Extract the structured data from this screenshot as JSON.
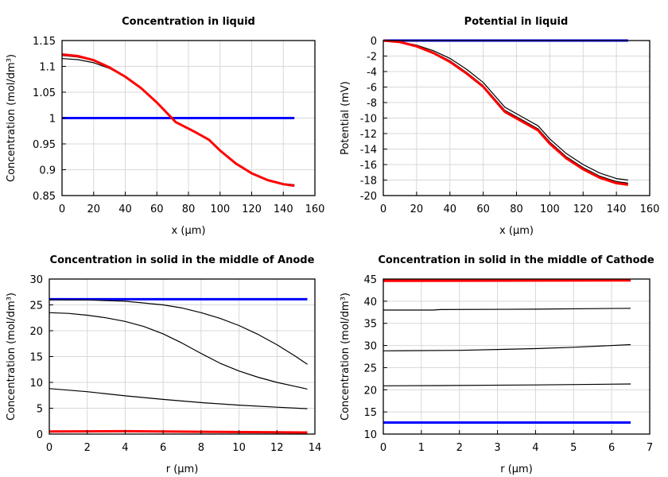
{
  "chart_data": [
    {
      "type": "line",
      "title": "Concentration in liquid",
      "xlabel": "x (µm)",
      "ylabel": "Concentration (mol/dm³)",
      "xlim": [
        0,
        160
      ],
      "ylim": [
        0.85,
        1.15
      ],
      "xticks": [
        0,
        20,
        40,
        60,
        80,
        100,
        120,
        140,
        160
      ],
      "yticks": [
        0.85,
        0.9,
        0.95,
        1,
        1.05,
        1.1,
        1.15
      ],
      "ytick_labels": [
        "0.85",
        "0.9",
        "0.95",
        "1",
        "1.05",
        "1.1",
        "1.15"
      ],
      "grid": true,
      "series": [
        {
          "color": "#0000ff",
          "width": 3,
          "x": [
            0,
            147
          ],
          "y": [
            1,
            1
          ]
        },
        {
          "color": "#000000",
          "width": 1.2,
          "x": [
            0,
            10,
            20,
            30,
            40,
            50,
            60,
            72,
            83,
            93,
            100,
            110,
            120,
            130,
            140,
            147
          ],
          "y": [
            1.115,
            1.113,
            1.107,
            1.096,
            1.08,
            1.058,
            1.03,
            0.993,
            0.976,
            0.959,
            0.938,
            0.913,
            0.894,
            0.881,
            0.873,
            0.871
          ]
        },
        {
          "color": "#000000",
          "width": 1.2,
          "x": [
            0,
            10,
            20,
            30,
            40,
            50,
            60,
            72,
            83,
            93,
            100,
            110,
            120,
            130,
            140,
            147
          ],
          "y": [
            1.121,
            1.118,
            1.111,
            1.098,
            1.08,
            1.058,
            1.03,
            0.992,
            0.975,
            0.958,
            0.937,
            0.912,
            0.893,
            0.88,
            0.872,
            0.87
          ]
        },
        {
          "color": "#ff0000",
          "width": 3,
          "x": [
            0,
            10,
            20,
            30,
            40,
            50,
            60,
            72,
            83,
            93,
            100,
            110,
            120,
            130,
            140,
            147
          ],
          "y": [
            1.123,
            1.12,
            1.112,
            1.098,
            1.08,
            1.058,
            1.03,
            0.992,
            0.975,
            0.958,
            0.937,
            0.912,
            0.893,
            0.88,
            0.872,
            0.869
          ]
        }
      ]
    },
    {
      "type": "line",
      "title": "Potential in liquid",
      "xlabel": "x (µm)",
      "ylabel": "Potential (mV)",
      "xlim": [
        0,
        160
      ],
      "ylim": [
        -20,
        0
      ],
      "xticks": [
        0,
        20,
        40,
        60,
        80,
        100,
        120,
        140,
        160
      ],
      "yticks": [
        -20,
        -18,
        -16,
        -14,
        -12,
        -10,
        -8,
        -6,
        -4,
        -2,
        0
      ],
      "ytick_labels": [
        "-20",
        "-18",
        "-16",
        "-14",
        "-12",
        "-10",
        "-8",
        "-6",
        "-4",
        "-2",
        "0"
      ],
      "grid": true,
      "series": [
        {
          "color": "#0000ff",
          "width": 3,
          "x": [
            0,
            147
          ],
          "y": [
            0,
            0
          ]
        },
        {
          "color": "#000000",
          "width": 1.2,
          "x": [
            0,
            10,
            20,
            30,
            40,
            50,
            60,
            73,
            83,
            93,
            100,
            110,
            120,
            130,
            140,
            147
          ],
          "y": [
            0,
            -0.15,
            -0.6,
            -1.3,
            -2.3,
            -3.7,
            -5.4,
            -8.6,
            -9.8,
            -11.0,
            -12.7,
            -14.6,
            -16.0,
            -17.1,
            -17.8,
            -18.0
          ]
        },
        {
          "color": "#000000",
          "width": 1.2,
          "x": [
            0,
            10,
            20,
            30,
            40,
            50,
            60,
            73,
            83,
            93,
            100,
            110,
            120,
            130,
            140,
            147
          ],
          "y": [
            0,
            -0.2,
            -0.7,
            -1.5,
            -2.6,
            -4.1,
            -5.8,
            -9.0,
            -10.2,
            -11.4,
            -13.1,
            -15.0,
            -16.4,
            -17.5,
            -18.2,
            -18.4
          ]
        },
        {
          "color": "#ff0000",
          "width": 3,
          "x": [
            0,
            10,
            20,
            30,
            40,
            50,
            60,
            73,
            83,
            93,
            100,
            110,
            120,
            130,
            140,
            147
          ],
          "y": [
            0,
            -0.2,
            -0.75,
            -1.6,
            -2.75,
            -4.25,
            -5.95,
            -9.2,
            -10.4,
            -11.6,
            -13.3,
            -15.2,
            -16.6,
            -17.7,
            -18.4,
            -18.6
          ]
        }
      ]
    },
    {
      "type": "line",
      "title": "Concentration in solid in the middle of Anode",
      "xlabel": "r (µm)",
      "ylabel": "Concentration (mol/dm³)",
      "xlim": [
        0,
        14
      ],
      "ylim": [
        0,
        30
      ],
      "xticks": [
        0,
        2,
        4,
        6,
        8,
        10,
        12,
        14
      ],
      "yticks": [
        0,
        5,
        10,
        15,
        20,
        25,
        30
      ],
      "ytick_labels": [
        "0",
        "5",
        "10",
        "15",
        "20",
        "25",
        "30"
      ],
      "grid": true,
      "series": [
        {
          "color": "#0000ff",
          "width": 3,
          "x": [
            0,
            13.6
          ],
          "y": [
            26.1,
            26.1
          ]
        },
        {
          "color": "#000000",
          "width": 1.2,
          "x": [
            0,
            2,
            4,
            6,
            7,
            8,
            9,
            10,
            11,
            12,
            13,
            13.6
          ],
          "y": [
            26,
            25.95,
            25.7,
            25,
            24.4,
            23.5,
            22.4,
            21,
            19.3,
            17.3,
            15,
            13.5
          ]
        },
        {
          "color": "#000000",
          "width": 1.2,
          "x": [
            0,
            1,
            2,
            3,
            4,
            5,
            6,
            7,
            8,
            9,
            10,
            11,
            12,
            13,
            13.6
          ],
          "y": [
            23.5,
            23.35,
            23,
            22.5,
            21.8,
            20.8,
            19.4,
            17.6,
            15.6,
            13.7,
            12.2,
            11,
            10,
            9.2,
            8.7
          ]
        },
        {
          "color": "#000000",
          "width": 1.2,
          "x": [
            0,
            2,
            4,
            6,
            8,
            10,
            12,
            13.6
          ],
          "y": [
            8.8,
            8.2,
            7.4,
            6.7,
            6.1,
            5.6,
            5.2,
            4.9
          ]
        },
        {
          "color": "#ff0000",
          "width": 3,
          "x": [
            0,
            4,
            8,
            12,
            13.6
          ],
          "y": [
            0.5,
            0.55,
            0.45,
            0.35,
            0.3
          ]
        }
      ]
    },
    {
      "type": "line",
      "title": "Concentration in solid in the middle of Cathode",
      "xlabel": "r (µm)",
      "ylabel": "Concentration (mol/dm³)",
      "xlim": [
        0,
        7
      ],
      "ylim": [
        10,
        45
      ],
      "xticks": [
        0,
        1,
        2,
        3,
        4,
        5,
        6,
        7
      ],
      "yticks": [
        10,
        15,
        20,
        25,
        30,
        35,
        40,
        45
      ],
      "ytick_labels": [
        "10",
        "15",
        "20",
        "25",
        "30",
        "35",
        "40",
        "45"
      ],
      "grid": true,
      "series": [
        {
          "color": "#0000ff",
          "width": 3,
          "x": [
            0,
            6.5
          ],
          "y": [
            12.6,
            12.6
          ]
        },
        {
          "color": "#000000",
          "width": 1.2,
          "x": [
            0,
            1.5,
            4,
            6.5
          ],
          "y": [
            20.9,
            20.95,
            21.1,
            21.3
          ]
        },
        {
          "color": "#000000",
          "width": 1.2,
          "x": [
            0,
            2,
            4,
            5,
            6.5
          ],
          "y": [
            28.8,
            28.9,
            29.3,
            29.6,
            30.2
          ]
        },
        {
          "color": "#000000",
          "width": 1.2,
          "x": [
            0,
            1.3,
            1.5,
            4,
            6.5
          ],
          "y": [
            38,
            38,
            38.1,
            38.2,
            38.4
          ]
        },
        {
          "color": "#ff0000",
          "width": 3,
          "x": [
            0,
            6.5
          ],
          "y": [
            44.75,
            44.8
          ]
        },
        {
          "color": "#ff0000",
          "width": 2,
          "x": [
            0,
            6.5
          ],
          "y": [
            44.5,
            44.6
          ]
        }
      ]
    }
  ]
}
